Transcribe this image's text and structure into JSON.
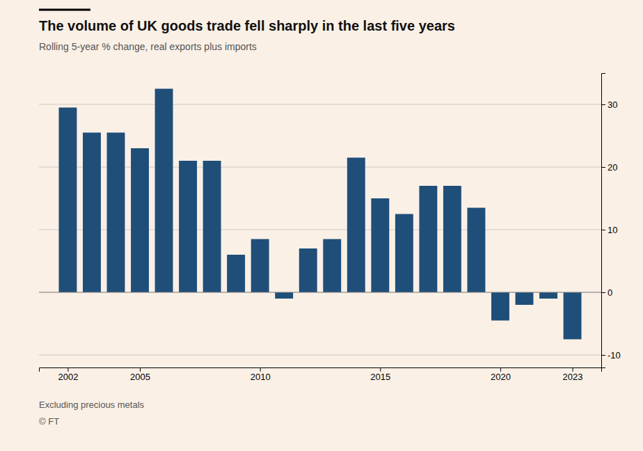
{
  "chart_data": {
    "type": "bar",
    "title": "The volume of UK goods trade fell sharply in the last five years",
    "subtitle": "Rolling 5-year % change, real exports plus imports",
    "annotations": [
      "Excluding precious metals",
      "© FT"
    ],
    "x": [
      2002,
      2003,
      2004,
      2005,
      2006,
      2007,
      2008,
      2009,
      2010,
      2011,
      2012,
      2013,
      2014,
      2015,
      2016,
      2017,
      2018,
      2019,
      2020,
      2021,
      2022,
      2023
    ],
    "values": [
      29.5,
      25.5,
      25.5,
      23.0,
      32.5,
      21.0,
      21.0,
      6.0,
      8.5,
      -1.0,
      7.0,
      8.5,
      21.5,
      15.0,
      12.5,
      17.0,
      17.0,
      13.5,
      -4.5,
      -2.0,
      -1.0,
      -7.5
    ],
    "color": "#1F4E79",
    "xlim": [
      2000.8,
      2024.2
    ],
    "xticks": [
      2002,
      2005,
      2010,
      2015,
      2020,
      2023
    ],
    "ylim": [
      -12,
      35
    ],
    "yticks": [
      -10,
      0,
      10,
      20,
      30
    ],
    "grid": true
  }
}
